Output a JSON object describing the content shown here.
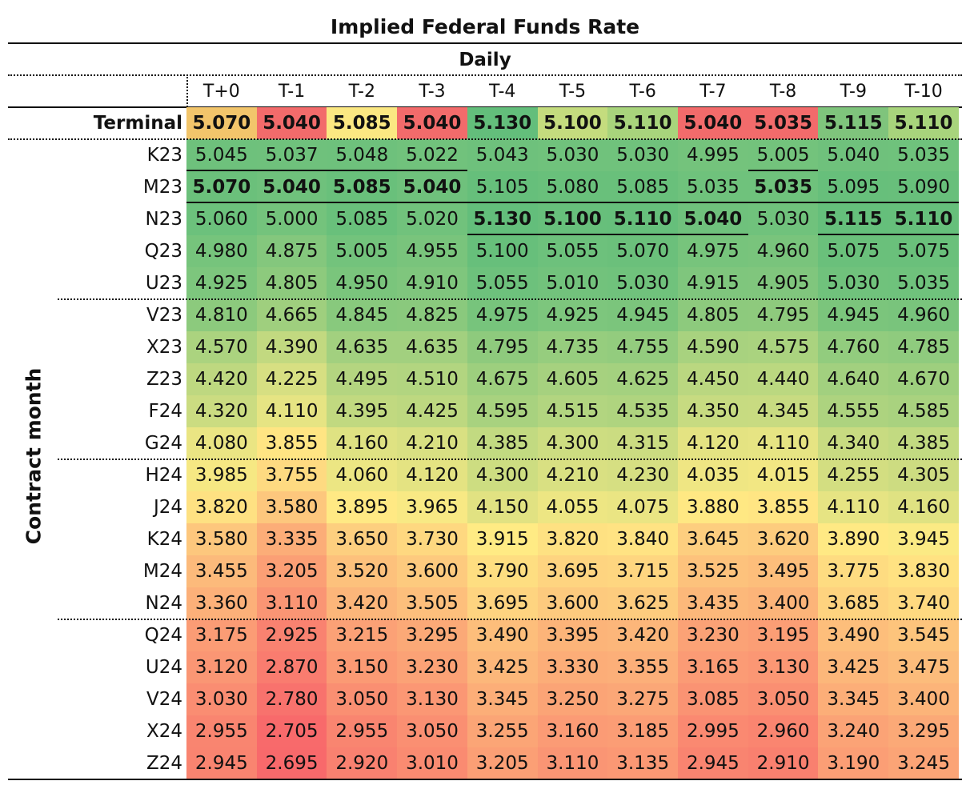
{
  "chart_data": {
    "type": "heatmap",
    "title": "Implied Federal Funds Rate",
    "subtitle": "Daily",
    "ylabel": "Contract month",
    "columns": [
      "T+0",
      "T-1",
      "T-2",
      "T-3",
      "T-4",
      "T-5",
      "T-6",
      "T-7",
      "T-8",
      "T-9",
      "T-10"
    ],
    "rows": [
      "Terminal",
      "K23",
      "M23",
      "N23",
      "Q23",
      "U23",
      "V23",
      "X23",
      "Z23",
      "F24",
      "G24",
      "H24",
      "J24",
      "K24",
      "M24",
      "N24",
      "Q24",
      "U24",
      "V24",
      "X24",
      "Z24"
    ],
    "values": [
      [
        "5.070",
        "5.040",
        "5.085",
        "5.040",
        "5.130",
        "5.100",
        "5.110",
        "5.040",
        "5.035",
        "5.115",
        "5.110"
      ],
      [
        "5.045",
        "5.037",
        "5.048",
        "5.022",
        "5.043",
        "5.030",
        "5.030",
        "4.995",
        "5.005",
        "5.040",
        "5.035"
      ],
      [
        "5.070",
        "5.040",
        "5.085",
        "5.040",
        "5.105",
        "5.080",
        "5.085",
        "5.035",
        "5.035",
        "5.095",
        "5.090"
      ],
      [
        "5.060",
        "5.000",
        "5.085",
        "5.020",
        "5.130",
        "5.100",
        "5.110",
        "5.040",
        "5.030",
        "5.115",
        "5.110"
      ],
      [
        "4.980",
        "4.875",
        "5.005",
        "4.955",
        "5.100",
        "5.055",
        "5.070",
        "4.975",
        "4.960",
        "5.075",
        "5.075"
      ],
      [
        "4.925",
        "4.805",
        "4.950",
        "4.910",
        "5.055",
        "5.010",
        "5.030",
        "4.915",
        "4.905",
        "5.030",
        "5.035"
      ],
      [
        "4.810",
        "4.665",
        "4.845",
        "4.825",
        "4.975",
        "4.925",
        "4.945",
        "4.805",
        "4.795",
        "4.945",
        "4.960"
      ],
      [
        "4.570",
        "4.390",
        "4.635",
        "4.635",
        "4.795",
        "4.735",
        "4.755",
        "4.590",
        "4.575",
        "4.760",
        "4.785"
      ],
      [
        "4.420",
        "4.225",
        "4.495",
        "4.510",
        "4.675",
        "4.605",
        "4.625",
        "4.450",
        "4.440",
        "4.640",
        "4.670"
      ],
      [
        "4.320",
        "4.110",
        "4.395",
        "4.425",
        "4.595",
        "4.515",
        "4.535",
        "4.350",
        "4.345",
        "4.555",
        "4.585"
      ],
      [
        "4.080",
        "3.855",
        "4.160",
        "4.210",
        "4.385",
        "4.300",
        "4.315",
        "4.120",
        "4.110",
        "4.340",
        "4.385"
      ],
      [
        "3.985",
        "3.755",
        "4.060",
        "4.120",
        "4.300",
        "4.210",
        "4.230",
        "4.035",
        "4.015",
        "4.255",
        "4.305"
      ],
      [
        "3.820",
        "3.580",
        "3.895",
        "3.965",
        "4.150",
        "4.055",
        "4.075",
        "3.880",
        "3.855",
        "4.110",
        "4.160"
      ],
      [
        "3.580",
        "3.335",
        "3.650",
        "3.730",
        "3.915",
        "3.820",
        "3.840",
        "3.645",
        "3.620",
        "3.890",
        "3.945"
      ],
      [
        "3.455",
        "3.205",
        "3.520",
        "3.600",
        "3.790",
        "3.695",
        "3.715",
        "3.525",
        "3.495",
        "3.775",
        "3.830"
      ],
      [
        "3.360",
        "3.110",
        "3.420",
        "3.505",
        "3.695",
        "3.600",
        "3.625",
        "3.435",
        "3.400",
        "3.685",
        "3.740"
      ],
      [
        "3.175",
        "2.925",
        "3.215",
        "3.295",
        "3.490",
        "3.395",
        "3.420",
        "3.230",
        "3.195",
        "3.490",
        "3.545"
      ],
      [
        "3.120",
        "2.870",
        "3.150",
        "3.230",
        "3.425",
        "3.330",
        "3.355",
        "3.165",
        "3.130",
        "3.425",
        "3.475"
      ],
      [
        "3.030",
        "2.780",
        "3.050",
        "3.130",
        "3.345",
        "3.250",
        "3.275",
        "3.085",
        "3.050",
        "3.345",
        "3.400"
      ],
      [
        "2.955",
        "2.705",
        "2.955",
        "3.050",
        "3.255",
        "3.160",
        "3.185",
        "2.995",
        "2.960",
        "3.240",
        "3.295"
      ],
      [
        "2.945",
        "2.695",
        "2.920",
        "3.010",
        "3.205",
        "3.110",
        "3.135",
        "2.945",
        "2.910",
        "3.190",
        "3.245"
      ]
    ],
    "terminal_colors": [
      "#f2c56b",
      "#f26b6b",
      "#fbe882",
      "#f26b6b",
      "#63be7b",
      "#c4dc7e",
      "#a8d47c",
      "#f26b6b",
      "#f26b6b",
      "#7fc47c",
      "#a8d47c"
    ],
    "color_scale": {
      "low": "#f8696b",
      "mid": "#ffeb84",
      "high": "#63be7b",
      "min": 2.695,
      "max": 5.13
    },
    "terminal_contracts": [
      "M23",
      "M23",
      "M23",
      "M23",
      "N23",
      "N23",
      "N23",
      "N23",
      "M23",
      "N23",
      "N23"
    ]
  }
}
